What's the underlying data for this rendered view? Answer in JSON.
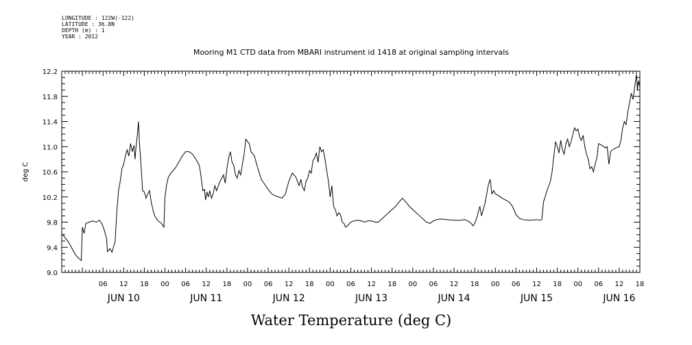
{
  "header": {
    "longitude": "LONGITUDE : 122W(-122)",
    "latitude": "LATITUDE : 36.8N",
    "depth": "DEPTH (m) : 1",
    "year": "YEAR : 2012"
  },
  "chart_data": {
    "type": "line",
    "title": "Mooring M1 CTD data from MBARI instrument id 1418 at original sampling intervals",
    "xlabel": "Water Temperature (deg C)",
    "ylabel": "deg C",
    "ylim": [
      9.0,
      12.2
    ],
    "y_ticks": [
      "9.0",
      "9.4",
      "9.8",
      "10.2",
      "10.6",
      "11.0",
      "11.4",
      "11.8",
      "12.2"
    ],
    "x_unit": "hours since JUN 10 00:00 2012",
    "xlim": [
      -6,
      162
    ],
    "x_hour_ticks": [
      {
        "h": 6,
        "label": "06"
      },
      {
        "h": 12,
        "label": "12"
      },
      {
        "h": 18,
        "label": "18"
      },
      {
        "h": 24,
        "label": "00"
      },
      {
        "h": 30,
        "label": "06"
      },
      {
        "h": 36,
        "label": "12"
      },
      {
        "h": 42,
        "label": "18"
      },
      {
        "h": 48,
        "label": "00"
      },
      {
        "h": 54,
        "label": "06"
      },
      {
        "h": 60,
        "label": "12"
      },
      {
        "h": 66,
        "label": "18"
      },
      {
        "h": 72,
        "label": "00"
      },
      {
        "h": 78,
        "label": "06"
      },
      {
        "h": 84,
        "label": "12"
      },
      {
        "h": 90,
        "label": "18"
      },
      {
        "h": 96,
        "label": "00"
      },
      {
        "h": 102,
        "label": "06"
      },
      {
        "h": 108,
        "label": "12"
      },
      {
        "h": 114,
        "label": "18"
      },
      {
        "h": 120,
        "label": "00"
      },
      {
        "h": 126,
        "label": "06"
      },
      {
        "h": 132,
        "label": "12"
      },
      {
        "h": 138,
        "label": "18"
      },
      {
        "h": 144,
        "label": "00"
      },
      {
        "h": 150,
        "label": "06"
      },
      {
        "h": 156,
        "label": "12"
      },
      {
        "h": 162,
        "label": "18"
      }
    ],
    "x_day_labels": [
      {
        "h": 12,
        "label": "JUN 10"
      },
      {
        "h": 36,
        "label": "JUN 11"
      },
      {
        "h": 60,
        "label": "JUN 12"
      },
      {
        "h": 84,
        "label": "JUN 13"
      },
      {
        "h": 108,
        "label": "JUN 14"
      },
      {
        "h": 132,
        "label": "JUN 15"
      },
      {
        "h": 156,
        "label": "JUN 16"
      }
    ],
    "series": [
      {
        "color": "#000000",
        "points": [
          [
            -6,
            9.62
          ],
          [
            -5,
            9.55
          ],
          [
            -4,
            9.48
          ],
          [
            -3,
            9.38
          ],
          [
            -2,
            9.28
          ],
          [
            -1,
            9.22
          ],
          [
            -0.3,
            9.19
          ],
          [
            0,
            9.72
          ],
          [
            0.5,
            9.62
          ],
          [
            1,
            9.78
          ],
          [
            2,
            9.8
          ],
          [
            3,
            9.82
          ],
          [
            4,
            9.8
          ],
          [
            5,
            9.83
          ],
          [
            5.8,
            9.76
          ],
          [
            6.2,
            9.7
          ],
          [
            7,
            9.55
          ],
          [
            7.3,
            9.33
          ],
          [
            8,
            9.38
          ],
          [
            8.6,
            9.32
          ],
          [
            9,
            9.4
          ],
          [
            9.5,
            9.48
          ],
          [
            10,
            9.95
          ],
          [
            10.5,
            10.3
          ],
          [
            11,
            10.45
          ],
          [
            11.5,
            10.65
          ],
          [
            12,
            10.72
          ],
          [
            12.5,
            10.85
          ],
          [
            13,
            10.95
          ],
          [
            13.5,
            10.85
          ],
          [
            14,
            11.05
          ],
          [
            14.5,
            10.92
          ],
          [
            15,
            11.02
          ],
          [
            15.3,
            10.8
          ],
          [
            15.6,
            11.0
          ],
          [
            16,
            11.2
          ],
          [
            16.3,
            11.4
          ],
          [
            16.6,
            11.05
          ],
          [
            17,
            10.75
          ],
          [
            17.5,
            10.3
          ],
          [
            18,
            10.28
          ],
          [
            18.5,
            10.18
          ],
          [
            19,
            10.25
          ],
          [
            19.5,
            10.3
          ],
          [
            20,
            10.12
          ],
          [
            20.5,
            10.0
          ],
          [
            21,
            9.9
          ],
          [
            22,
            9.82
          ],
          [
            23,
            9.78
          ],
          [
            23.7,
            9.72
          ],
          [
            24,
            10.2
          ],
          [
            24.5,
            10.4
          ],
          [
            25,
            10.52
          ],
          [
            26,
            10.6
          ],
          [
            27,
            10.66
          ],
          [
            28,
            10.75
          ],
          [
            29,
            10.85
          ],
          [
            30,
            10.92
          ],
          [
            31,
            10.92
          ],
          [
            32,
            10.88
          ],
          [
            33,
            10.8
          ],
          [
            34,
            10.7
          ],
          [
            34.5,
            10.52
          ],
          [
            35,
            10.3
          ],
          [
            35.5,
            10.32
          ],
          [
            35.8,
            10.15
          ],
          [
            36.2,
            10.28
          ],
          [
            36.6,
            10.2
          ],
          [
            37,
            10.3
          ],
          [
            37.5,
            10.18
          ],
          [
            38,
            10.25
          ],
          [
            38.5,
            10.38
          ],
          [
            39,
            10.3
          ],
          [
            40,
            10.45
          ],
          [
            41,
            10.55
          ],
          [
            41.5,
            10.42
          ],
          [
            42,
            10.65
          ],
          [
            42.5,
            10.82
          ],
          [
            43,
            10.92
          ],
          [
            43.5,
            10.75
          ],
          [
            44,
            10.7
          ],
          [
            44.5,
            10.55
          ],
          [
            45,
            10.5
          ],
          [
            45.5,
            10.62
          ],
          [
            46,
            10.55
          ],
          [
            46.5,
            10.72
          ],
          [
            47,
            10.88
          ],
          [
            47.5,
            11.12
          ],
          [
            48,
            11.08
          ],
          [
            48.5,
            11.05
          ],
          [
            49,
            10.92
          ],
          [
            50,
            10.85
          ],
          [
            51,
            10.65
          ],
          [
            52,
            10.48
          ],
          [
            53,
            10.4
          ],
          [
            54,
            10.32
          ],
          [
            55,
            10.25
          ],
          [
            56,
            10.22
          ],
          [
            57,
            10.2
          ],
          [
            58,
            10.18
          ],
          [
            59,
            10.25
          ],
          [
            59.5,
            10.35
          ],
          [
            60,
            10.45
          ],
          [
            61,
            10.58
          ],
          [
            62,
            10.52
          ],
          [
            62.5,
            10.45
          ],
          [
            63,
            10.38
          ],
          [
            63.5,
            10.48
          ],
          [
            64,
            10.35
          ],
          [
            64.5,
            10.3
          ],
          [
            65,
            10.45
          ],
          [
            65.5,
            10.5
          ],
          [
            66,
            10.62
          ],
          [
            66.5,
            10.58
          ],
          [
            67,
            10.78
          ],
          [
            67.5,
            10.82
          ],
          [
            68,
            10.9
          ],
          [
            68.5,
            10.75
          ],
          [
            69,
            11.0
          ],
          [
            69.5,
            10.92
          ],
          [
            70,
            10.95
          ],
          [
            70.5,
            10.8
          ],
          [
            71,
            10.62
          ],
          [
            71.5,
            10.45
          ],
          [
            72,
            10.2
          ],
          [
            72.5,
            10.38
          ],
          [
            73,
            10.05
          ],
          [
            73.5,
            10.0
          ],
          [
            74,
            9.9
          ],
          [
            74.5,
            9.95
          ],
          [
            75,
            9.92
          ],
          [
            75.5,
            9.8
          ],
          [
            76,
            9.78
          ],
          [
            76.5,
            9.72
          ],
          [
            77,
            9.74
          ],
          [
            78,
            9.8
          ],
          [
            79,
            9.82
          ],
          [
            80,
            9.83
          ],
          [
            81,
            9.82
          ],
          [
            82,
            9.8
          ],
          [
            83,
            9.82
          ],
          [
            84,
            9.82
          ],
          [
            85,
            9.8
          ],
          [
            86,
            9.8
          ],
          [
            87,
            9.85
          ],
          [
            88,
            9.9
          ],
          [
            89,
            9.95
          ],
          [
            90,
            10.0
          ],
          [
            91,
            10.05
          ],
          [
            92,
            10.12
          ],
          [
            93,
            10.18
          ],
          [
            94,
            10.12
          ],
          [
            95,
            10.05
          ],
          [
            96,
            10.0
          ],
          [
            97,
            9.95
          ],
          [
            98,
            9.9
          ],
          [
            99,
            9.85
          ],
          [
            100,
            9.8
          ],
          [
            101,
            9.78
          ],
          [
            102,
            9.82
          ],
          [
            103,
            9.84
          ],
          [
            104,
            9.85
          ],
          [
            106,
            9.84
          ],
          [
            108,
            9.83
          ],
          [
            110,
            9.83
          ],
          [
            111,
            9.84
          ],
          [
            112,
            9.82
          ],
          [
            113,
            9.78
          ],
          [
            113.5,
            9.74
          ],
          [
            114,
            9.78
          ],
          [
            114.5,
            9.85
          ],
          [
            115,
            9.95
          ],
          [
            115.5,
            10.05
          ],
          [
            116,
            9.9
          ],
          [
            116.5,
            10.0
          ],
          [
            117,
            10.1
          ],
          [
            117.5,
            10.25
          ],
          [
            118,
            10.4
          ],
          [
            118.5,
            10.48
          ],
          [
            119,
            10.25
          ],
          [
            119.5,
            10.3
          ],
          [
            120,
            10.25
          ],
          [
            121,
            10.22
          ],
          [
            122,
            10.18
          ],
          [
            123,
            10.15
          ],
          [
            124,
            10.12
          ],
          [
            125,
            10.05
          ],
          [
            126,
            9.92
          ],
          [
            127,
            9.86
          ],
          [
            128,
            9.84
          ],
          [
            130,
            9.83
          ],
          [
            132,
            9.84
          ],
          [
            133,
            9.83
          ],
          [
            133.5,
            9.84
          ],
          [
            134,
            10.12
          ],
          [
            135,
            10.3
          ],
          [
            136,
            10.45
          ],
          [
            136.5,
            10.6
          ],
          [
            137,
            10.85
          ],
          [
            137.5,
            11.08
          ],
          [
            138,
            11.0
          ],
          [
            138.5,
            10.9
          ],
          [
            139,
            11.1
          ],
          [
            139.5,
            10.95
          ],
          [
            140,
            10.88
          ],
          [
            140.5,
            11.05
          ],
          [
            141,
            11.12
          ],
          [
            141.5,
            11.0
          ],
          [
            142,
            11.08
          ],
          [
            143,
            11.3
          ],
          [
            143.5,
            11.25
          ],
          [
            144,
            11.28
          ],
          [
            144.5,
            11.15
          ],
          [
            145,
            11.1
          ],
          [
            145.5,
            11.18
          ],
          [
            146,
            11.0
          ],
          [
            146.5,
            10.88
          ],
          [
            147,
            10.8
          ],
          [
            147.5,
            10.65
          ],
          [
            148,
            10.68
          ],
          [
            148.5,
            10.6
          ],
          [
            149,
            10.72
          ],
          [
            149.5,
            10.82
          ],
          [
            150,
            11.05
          ],
          [
            151,
            11.02
          ],
          [
            152,
            10.98
          ],
          [
            152.5,
            11.0
          ],
          [
            153,
            10.72
          ],
          [
            153.5,
            10.92
          ],
          [
            154,
            10.95
          ],
          [
            155,
            10.98
          ],
          [
            156,
            11.0
          ],
          [
            156.5,
            11.1
          ],
          [
            157,
            11.3
          ],
          [
            157.5,
            11.4
          ],
          [
            158,
            11.35
          ],
          [
            158.5,
            11.55
          ],
          [
            159,
            11.7
          ],
          [
            159.5,
            11.85
          ],
          [
            160,
            11.75
          ],
          [
            160.5,
            11.95
          ],
          [
            161,
            12.15
          ],
          [
            161.3,
            11.9
          ],
          [
            161.6,
            12.05
          ],
          [
            162,
            11.95
          ]
        ]
      }
    ]
  }
}
